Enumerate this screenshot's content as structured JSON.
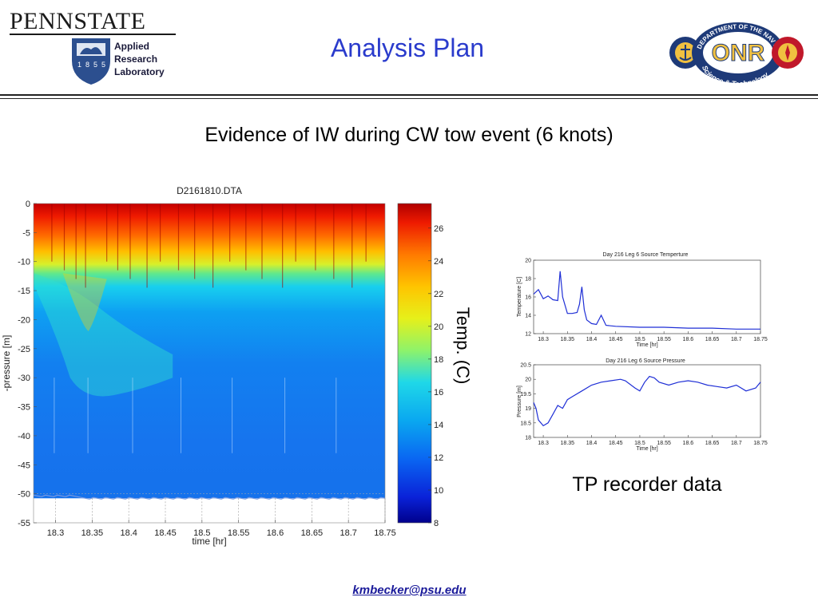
{
  "header": {
    "university": "PENNSTATE",
    "seal_years": [
      "1",
      "8",
      "5",
      "5"
    ],
    "lab_lines": [
      "Applied",
      "Research",
      "Laboratory"
    ],
    "onr_text": "ONR",
    "onr_ring_top": "DEPARTMENT OF THE NAVY",
    "onr_ring_bottom": "Science & Technology"
  },
  "slide": {
    "title": "Analysis Plan",
    "subtitle": "Evidence of IW during CW tow event (6 knots)",
    "colorbar_label": "Temp. (C)",
    "tp_label": "TP recorder data",
    "footer_email": "kmbecker@psu.edu"
  },
  "colors": {
    "title": "#2a3bcc",
    "trace": "#1f2fd6",
    "footer": "#1a1a9a"
  },
  "chart_data": [
    {
      "type": "heatmap",
      "title": "D2161810.DTA",
      "xlabel": "time [hr]",
      "ylabel": "-pressure [m]",
      "xlim": [
        18.27,
        18.75
      ],
      "ylim": [
        -55,
        0
      ],
      "xticks": [
        "18.3",
        "18.35",
        "18.4",
        "18.45",
        "18.5",
        "18.55",
        "18.6",
        "18.65",
        "18.7",
        "18.75"
      ],
      "yticks": [
        "0",
        "-5",
        "-10",
        "-15",
        "-20",
        "-25",
        "-30",
        "-35",
        "-40",
        "-45",
        "-50",
        "-55"
      ],
      "colorbar": {
        "label": "Temp. (C)",
        "range": [
          8,
          27.5
        ],
        "ticks": [
          "26",
          "24",
          "22",
          "20",
          "18",
          "16",
          "14",
          "12",
          "10",
          "8"
        ]
      },
      "bottom_depth_m": -50.5
    },
    {
      "type": "line",
      "title": "Day 216 Leg 6 Source Temperture",
      "xlabel": "Time [hr]",
      "ylabel": "Temperature [C]",
      "xlim": [
        18.28,
        18.75
      ],
      "ylim": [
        12,
        20
      ],
      "xticks": [
        "18.3",
        "18.35",
        "18.4",
        "18.45",
        "18.5",
        "18.55",
        "18.6",
        "18.65",
        "18.7",
        "18.75"
      ],
      "yticks": [
        "20",
        "18",
        "16",
        "14",
        "12"
      ],
      "x": [
        18.28,
        18.29,
        18.3,
        18.31,
        18.32,
        18.33,
        18.335,
        18.34,
        18.35,
        18.36,
        18.37,
        18.375,
        18.38,
        18.385,
        18.39,
        18.4,
        18.41,
        18.42,
        18.43,
        18.45,
        18.5,
        18.55,
        18.6,
        18.65,
        18.7,
        18.75
      ],
      "y": [
        16.3,
        16.8,
        15.8,
        16.1,
        15.7,
        15.6,
        18.8,
        16.0,
        14.2,
        14.2,
        14.3,
        15.2,
        17.1,
        14.6,
        13.5,
        13.1,
        13.0,
        14.0,
        12.9,
        12.8,
        12.7,
        12.7,
        12.6,
        12.6,
        12.5,
        12.5
      ]
    },
    {
      "type": "line",
      "title": "Day 216 Leg 6 Source Pressure",
      "xlabel": "Time [hr]",
      "ylabel": "Pressure [m]",
      "xlim": [
        18.28,
        18.75
      ],
      "ylim": [
        18,
        20.5
      ],
      "xticks": [
        "18.3",
        "18.35",
        "18.4",
        "18.45",
        "18.5",
        "18.55",
        "18.6",
        "18.65",
        "18.7",
        "18.75"
      ],
      "yticks": [
        "20.5",
        "20",
        "19.5",
        "19",
        "18.5",
        "18"
      ],
      "x": [
        18.28,
        18.285,
        18.29,
        18.3,
        18.31,
        18.32,
        18.33,
        18.34,
        18.35,
        18.36,
        18.38,
        18.4,
        18.42,
        18.44,
        18.46,
        18.47,
        18.49,
        18.5,
        18.51,
        18.52,
        18.53,
        18.54,
        18.56,
        18.58,
        18.6,
        18.62,
        18.64,
        18.66,
        18.68,
        18.7,
        18.72,
        18.74,
        18.75
      ],
      "y": [
        19.2,
        19.0,
        18.6,
        18.4,
        18.5,
        18.8,
        19.1,
        19.0,
        19.3,
        19.4,
        19.6,
        19.8,
        19.9,
        19.95,
        20.0,
        19.95,
        19.7,
        19.6,
        19.9,
        20.1,
        20.05,
        19.9,
        19.8,
        19.9,
        19.95,
        19.9,
        19.8,
        19.75,
        19.7,
        19.8,
        19.6,
        19.7,
        19.9
      ]
    }
  ]
}
